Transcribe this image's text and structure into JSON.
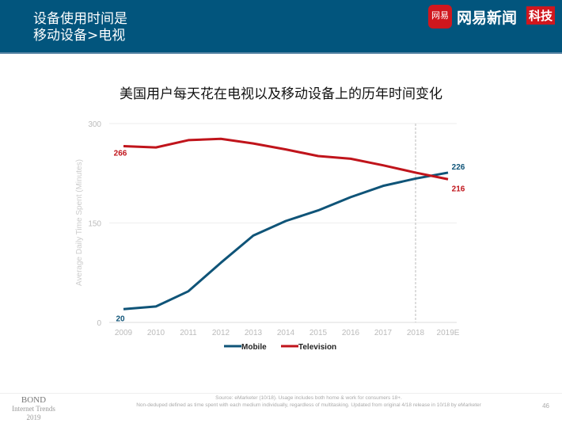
{
  "header": {
    "title_line1": "设备使用时间是",
    "title_line2": "移动设备>电视",
    "logo_text": "网易",
    "brand": "网易新闻",
    "tag": "科技"
  },
  "chart_data": {
    "type": "line",
    "title": "美国用户每天花在电视以及移动设备上的历年时间变化",
    "ylabel": "Average Daily Time Spent (Minutes)",
    "xlabel": "",
    "categories": [
      "2009",
      "2010",
      "2011",
      "2012",
      "2013",
      "2014",
      "2015",
      "2016",
      "2017",
      "2018",
      "2019E"
    ],
    "ylim": [
      0,
      300
    ],
    "yticks": [
      "0",
      "150",
      "300"
    ],
    "grid": true,
    "legend": "bottom",
    "forecast_divider": "2018",
    "series": [
      {
        "name": "Mobile",
        "color": "#0f5478",
        "values": [
          20,
          24,
          47,
          90,
          131,
          153,
          169,
          189,
          206,
          217,
          226
        ],
        "labels": {
          "first": "20",
          "last": "226"
        }
      },
      {
        "name": "Television",
        "color": "#c0141b",
        "values": [
          266,
          264,
          275,
          277,
          270,
          261,
          251,
          247,
          237,
          226,
          216
        ],
        "labels": {
          "first": "266",
          "last": "216"
        }
      }
    ]
  },
  "footer": {
    "bond": "BOND",
    "bond_sub": "Internet Trends",
    "bond_year": "2019",
    "source_line1": "Source: eMarketer (10/18). Usage includes both home & work for consumers 18+.",
    "source_line2": "Non-deduped defined as time spent with each medium individually, regardless of multitasking. Updated from original 4/18 release in 10/18 by eMarketer",
    "page": "46"
  }
}
